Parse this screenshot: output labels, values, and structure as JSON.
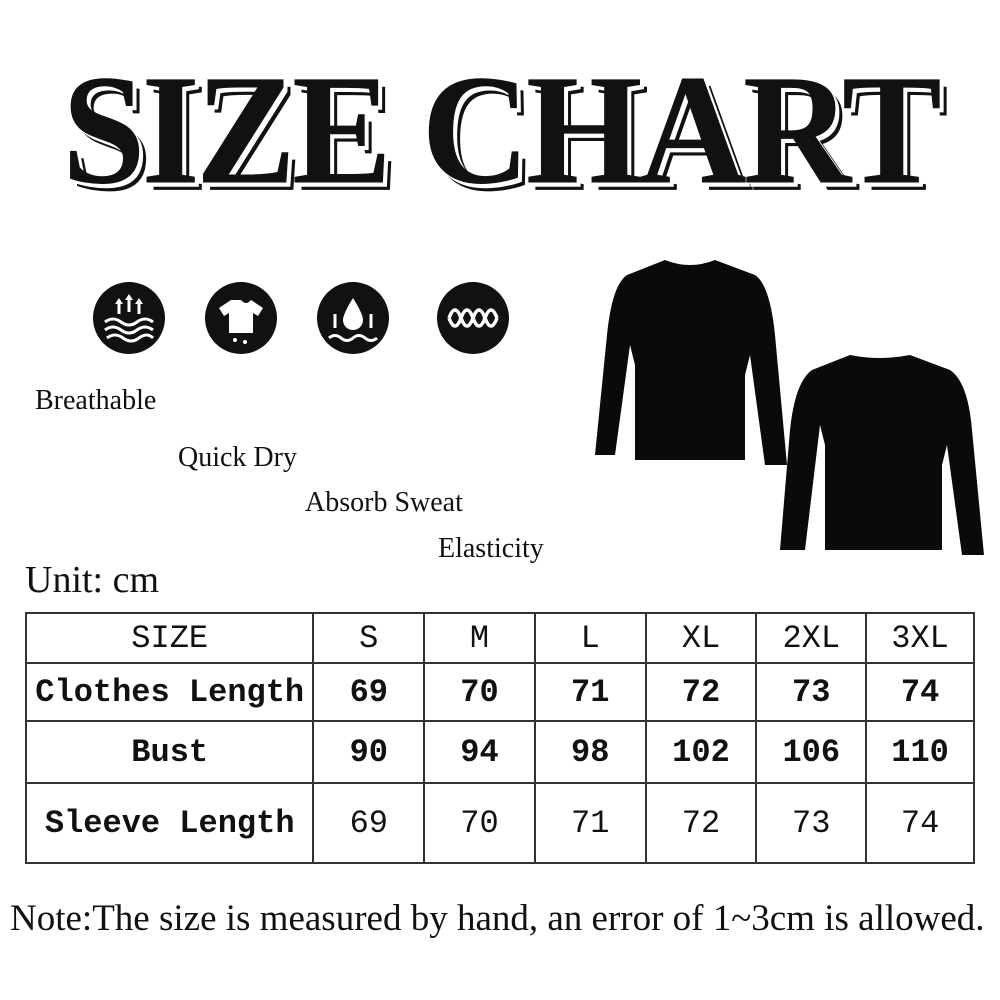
{
  "title": "SIZE CHART",
  "features": [
    {
      "icon": "breathable-arrows-waves-icon",
      "label": "Breathable"
    },
    {
      "icon": "quick-dry-tshirt-icon",
      "label": "Quick Dry"
    },
    {
      "icon": "absorb-sweat-drop-icon",
      "label": "Absorb Sweat"
    },
    {
      "icon": "elasticity-wave-icon",
      "label": "Elasticity"
    }
  ],
  "unit": "Unit: cm",
  "table": {
    "headers": [
      "SIZE",
      "S",
      "M",
      "L",
      "XL",
      "2XL",
      "3XL"
    ],
    "rows": [
      {
        "label": "Clothes Length",
        "values": [
          "69",
          "70",
          "71",
          "72",
          "73",
          "74"
        ]
      },
      {
        "label": "Bust",
        "values": [
          "90",
          "94",
          "98",
          "102",
          "106",
          "110"
        ]
      },
      {
        "label": "Sleeve Length",
        "values": [
          "69",
          "70",
          "71",
          "72",
          "73",
          "74"
        ]
      }
    ]
  },
  "note": "Note:The size is measured by hand, an error of 1~3cm is allowed."
}
